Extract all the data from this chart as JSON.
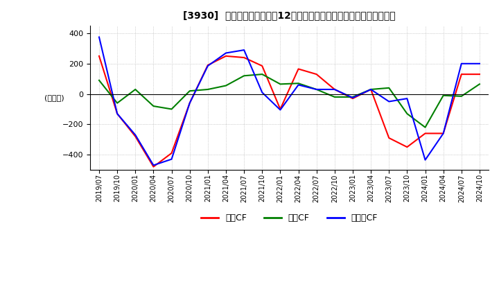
{
  "title": "[3930]  キャッシュフローの12か月移動合計の対前年同期増減額の推移",
  "ylabel": "(百万円)",
  "ylim": [
    -500,
    450
  ],
  "yticks": [
    -400,
    -200,
    0,
    200,
    400
  ],
  "bg_color": "#ffffff",
  "grid_color": "#aaaaaa",
  "legend": [
    "営業CF",
    "投資CF",
    "フリーCF"
  ],
  "legend_colors": [
    "#ff0000",
    "#008000",
    "#0000ff"
  ],
  "dates": [
    "2019/07",
    "2019/10",
    "2020/01",
    "2020/04",
    "2020/07",
    "2020/10",
    "2021/01",
    "2021/04",
    "2021/07",
    "2021/10",
    "2022/01",
    "2022/04",
    "2022/07",
    "2022/10",
    "2023/01",
    "2023/04",
    "2023/07",
    "2023/10",
    "2024/01",
    "2024/04",
    "2024/07",
    "2024/10"
  ],
  "operating_cf": [
    250,
    -130,
    -280,
    -480,
    -390,
    -60,
    190,
    250,
    240,
    185,
    -100,
    165,
    130,
    30,
    -30,
    30,
    -290,
    -350,
    -260,
    -260,
    130,
    130
  ],
  "investing_cf": [
    90,
    -60,
    30,
    -80,
    -100,
    20,
    30,
    55,
    120,
    130,
    65,
    70,
    30,
    -20,
    -20,
    30,
    40,
    -130,
    -220,
    -10,
    -15,
    65
  ],
  "free_cf": [
    375,
    -130,
    -270,
    -470,
    -430,
    -60,
    185,
    270,
    290,
    10,
    -105,
    60,
    30,
    30,
    -25,
    30,
    -50,
    -30,
    -435,
    -260,
    200,
    200
  ]
}
